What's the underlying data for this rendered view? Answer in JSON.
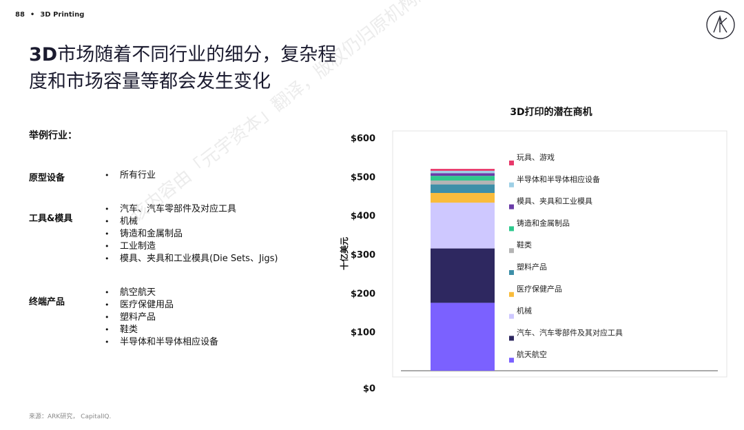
{
  "header": {
    "page_number": "88",
    "separator": "•",
    "section": "3D Printing"
  },
  "title": {
    "prefix_bold": "3D",
    "line1_rest": "市场随着不同行业的细分，复杂程",
    "line2": "度和市场容量等都会发生变化"
  },
  "examples_heading": "举例行业：",
  "categories": [
    {
      "name": "原型设备",
      "items": [
        "所有行业"
      ]
    },
    {
      "name": "工具&模具",
      "items": [
        "汽车、汽车零部件及对应工具",
        "机械",
        "铸造和金属制品",
        "工业制造",
        "模具、夹具和工业模具(Die Sets、Jigs)"
      ]
    },
    {
      "name": "终端产品",
      "items": [
        "航空航天",
        "医疗保健用品",
        "塑料产品",
        "鞋类",
        "半导体和半导体相应设备"
      ]
    }
  ],
  "source": "来源：ARK研究， CapitalIQ.",
  "watermark": "该内容由「元宇资本」翻译，版权仍归原机构所有",
  "chart_data": {
    "type": "bar",
    "stacked": true,
    "title": "3D打印的潜在商机",
    "ylabel": "十亿美元",
    "ylim": [
      0,
      600
    ],
    "yticks": [
      {
        "value": 0,
        "label": "$0"
      },
      {
        "value": 100,
        "label": "$100"
      },
      {
        "value": 200,
        "label": "$200"
      },
      {
        "value": 300,
        "label": "$300"
      },
      {
        "value": 400,
        "label": "$400"
      },
      {
        "value": 500,
        "label": "$500"
      },
      {
        "value": 600,
        "label": "$600"
      }
    ],
    "legend_position": "right",
    "series": [
      {
        "name": "航天航空",
        "value": 175,
        "color": "#7B61FF"
      },
      {
        "name": "汽车、汽车零部件及其对应工具",
        "value": 140,
        "color": "#2E2860"
      },
      {
        "name": "机械",
        "value": 118,
        "color": "#CEC8FF"
      },
      {
        "name": "医疗保健产品",
        "value": 25,
        "color": "#F9BC3C"
      },
      {
        "name": "塑料产品",
        "value": 22,
        "color": "#3E8FA8"
      },
      {
        "name": "鞋类",
        "value": 10,
        "color": "#B4B4B4"
      },
      {
        "name": "铸造和金属制品",
        "value": 12,
        "color": "#2EC98E"
      },
      {
        "name": "模具、夹具和工业模具",
        "value": 7,
        "color": "#6A3CA8"
      },
      {
        "name": "半导体和半导体相应设备",
        "value": 6,
        "color": "#9FD0E6"
      },
      {
        "name": "玩具、游戏",
        "value": 5,
        "color": "#E8396B"
      }
    ]
  }
}
